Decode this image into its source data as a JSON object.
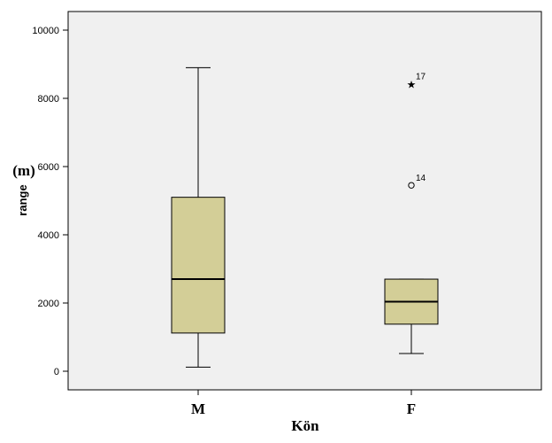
{
  "chart_data": {
    "type": "boxplot",
    "xlabel": "Kön",
    "ylabel": "range",
    "unit_label": "(m)",
    "ylim": [
      -600,
      10600
    ],
    "yticks": [
      0,
      2000,
      4000,
      6000,
      8000,
      10000
    ],
    "grid": false,
    "box_color": "#d3ce97",
    "plot_background": "#f0f0f0",
    "categories": [
      "M",
      "F"
    ],
    "series": [
      {
        "category": "M",
        "whisker_low": 120,
        "q1": 1120,
        "median": 2700,
        "q3": 5100,
        "whisker_high": 8900,
        "outliers": []
      },
      {
        "category": "F",
        "whisker_low": 520,
        "q1": 1380,
        "median": 2040,
        "q3": 2700,
        "whisker_high": 2700,
        "outliers": [
          {
            "label": "14",
            "value": 5450,
            "marker": "circle"
          },
          {
            "label": "17",
            "value": 8430,
            "marker": "star"
          }
        ]
      }
    ]
  }
}
